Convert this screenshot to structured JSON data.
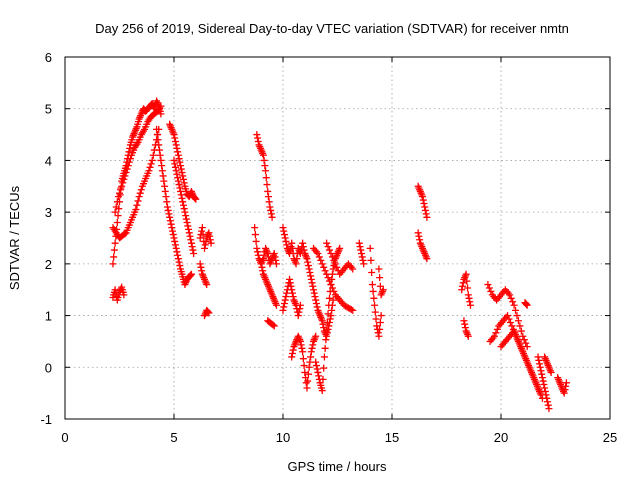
{
  "chart_data": {
    "type": "scatter",
    "title": "Day 256 of 2019, Sidereal Day-to-day VTEC variation (SDTVAR) for receiver nmtn",
    "xlabel": "GPS time / hours",
    "ylabel": "SDTVAR / TECUs",
    "xlim": [
      0,
      25
    ],
    "ylim": [
      -1,
      6
    ],
    "x_ticks": [
      "0",
      "5",
      "10",
      "15",
      "20",
      "25"
    ],
    "y_ticks": [
      "-1",
      "0",
      "1",
      "2",
      "3",
      "4",
      "5",
      "6"
    ],
    "grid": true,
    "marker": "plus",
    "color": "#ff0000",
    "series": [
      {
        "name": "SDTVAR",
        "segments": [
          {
            "x": [
              2.2,
              2.3,
              2.4,
              2.5,
              2.6,
              2.7,
              2.8,
              2.9,
              3.0,
              3.1,
              3.2,
              3.3,
              3.4,
              3.5,
              3.6,
              3.7,
              3.8,
              3.9,
              4.0,
              4.1,
              4.2,
              4.3,
              4.4
            ],
            "y": [
              2.0,
              2.4,
              2.8,
              3.2,
              3.6,
              3.75,
              3.9,
              4.1,
              4.3,
              4.45,
              4.55,
              4.65,
              4.8,
              4.9,
              5.0,
              4.95,
              5.0,
              5.05,
              5.1,
              5.0,
              5.15,
              5.05,
              4.9
            ]
          },
          {
            "x": [
              2.2,
              2.35,
              2.5,
              2.65,
              2.8,
              2.95,
              3.1,
              3.25,
              3.4,
              3.55,
              3.7,
              3.85,
              4.0,
              4.15,
              4.3
            ],
            "y": [
              2.7,
              2.6,
              2.5,
              2.55,
              2.6,
              2.75,
              2.9,
              3.05,
              3.3,
              3.5,
              3.65,
              3.8,
              4.0,
              4.3,
              4.6
            ]
          },
          {
            "x": [
              2.2,
              2.3,
              2.4,
              2.5,
              2.6,
              2.7
            ],
            "y": [
              1.35,
              1.5,
              1.3,
              1.45,
              1.55,
              1.4
            ]
          },
          {
            "x": [
              2.3,
              2.45,
              2.6,
              2.75,
              2.9,
              3.05,
              3.2,
              3.35,
              3.5,
              3.65,
              3.8,
              3.95,
              4.1,
              4.25,
              4.4
            ],
            "y": [
              3.0,
              3.3,
              3.5,
              3.7,
              3.9,
              4.1,
              4.25,
              4.35,
              4.5,
              4.6,
              4.75,
              4.85,
              4.9,
              4.95,
              5.05
            ]
          },
          {
            "x": [
              4.2,
              4.3,
              4.4,
              4.5,
              4.6,
              4.7,
              4.8,
              4.9,
              5.0,
              5.1,
              5.2,
              5.3,
              5.4,
              5.5,
              5.6,
              5.7,
              5.8
            ],
            "y": [
              4.6,
              4.3,
              4.0,
              3.7,
              3.4,
              3.1,
              2.9,
              2.7,
              2.5,
              2.3,
              2.1,
              1.9,
              1.75,
              1.6,
              1.7,
              1.75,
              1.8
            ]
          },
          {
            "x": [
              4.8,
              4.9,
              5.0,
              5.1,
              5.2,
              5.3,
              5.4,
              5.5,
              5.6,
              5.7,
              5.8,
              5.9,
              6.0
            ],
            "y": [
              4.7,
              4.6,
              4.5,
              4.3,
              4.1,
              3.9,
              3.7,
              3.5,
              3.35,
              3.3,
              3.4,
              3.3,
              3.25
            ]
          },
          {
            "x": [
              5.0,
              5.1,
              5.2,
              5.3,
              5.4,
              5.5,
              5.6,
              5.7,
              5.8,
              5.9
            ],
            "y": [
              4.0,
              3.8,
              3.6,
              3.4,
              3.2,
              3.0,
              2.8,
              2.6,
              2.4,
              2.2
            ]
          },
          {
            "x": [
              6.2,
              6.3,
              6.4,
              6.5,
              6.6,
              6.7
            ],
            "y": [
              2.5,
              2.7,
              2.3,
              2.5,
              2.6,
              2.4
            ]
          },
          {
            "x": [
              6.2,
              6.3,
              6.4,
              6.5
            ],
            "y": [
              2.0,
              1.8,
              1.7,
              1.6
            ]
          },
          {
            "x": [
              6.4,
              6.5,
              6.6
            ],
            "y": [
              1.0,
              1.1,
              1.05
            ]
          },
          {
            "x": [
              8.8,
              8.9,
              9.0,
              9.1,
              9.2,
              9.3,
              9.4,
              9.5
            ],
            "y": [
              4.5,
              4.3,
              4.2,
              4.1,
              3.8,
              3.4,
              3.1,
              2.9
            ]
          },
          {
            "x": [
              8.7,
              8.8,
              8.9,
              9.0,
              9.1,
              9.2,
              9.3,
              9.4,
              9.5,
              9.6,
              9.7
            ],
            "y": [
              2.7,
              2.3,
              2.1,
              2.0,
              2.1,
              2.3,
              2.2,
              2.0,
              2.1,
              2.2,
              2.0
            ]
          },
          {
            "x": [
              9.0,
              9.1,
              9.2,
              9.3,
              9.4,
              9.5,
              9.6,
              9.7
            ],
            "y": [
              2.0,
              1.8,
              1.7,
              1.6,
              1.5,
              1.4,
              1.3,
              1.2
            ]
          },
          {
            "x": [
              9.3,
              9.45,
              9.6
            ],
            "y": [
              0.9,
              0.85,
              0.8
            ]
          },
          {
            "x": [
              10.0,
              10.1,
              10.2,
              10.3,
              10.4,
              10.5,
              10.6,
              10.7,
              10.8,
              10.9,
              11.0
            ],
            "y": [
              2.7,
              2.5,
              2.3,
              2.2,
              2.4,
              2.1,
              2.0,
              2.3,
              2.2,
              2.4,
              2.2
            ]
          },
          {
            "x": [
              10.0,
              10.1,
              10.2,
              10.3,
              10.4,
              10.5,
              10.6,
              10.7,
              10.8
            ],
            "y": [
              1.1,
              1.3,
              1.5,
              1.7,
              1.5,
              1.3,
              1.2,
              1.0,
              1.2
            ]
          },
          {
            "x": [
              10.4,
              10.5,
              10.6,
              10.7,
              10.8,
              10.9,
              11.0,
              11.1,
              11.2,
              11.3,
              11.4,
              11.5
            ],
            "y": [
              0.2,
              0.4,
              0.5,
              0.6,
              0.5,
              0.3,
              -0.1,
              -0.4,
              0.0,
              0.3,
              0.5,
              0.6
            ]
          },
          {
            "x": [
              11.0,
              11.1,
              11.2,
              11.3,
              11.4,
              11.5,
              11.6,
              11.7,
              11.8,
              11.9,
              12.0,
              12.1,
              12.2,
              12.3
            ],
            "y": [
              2.2,
              2.1,
              1.9,
              1.7,
              1.5,
              1.3,
              1.1,
              1.0,
              0.9,
              0.7,
              0.6,
              0.8,
              1.0,
              1.3
            ]
          },
          {
            "x": [
              11.5,
              11.6,
              11.7,
              11.8,
              11.9,
              12.0,
              12.1,
              12.2,
              12.3,
              12.4,
              12.5,
              12.6
            ],
            "y": [
              0.1,
              -0.1,
              -0.3,
              -0.45,
              0.2,
              0.7,
              1.2,
              1.6,
              1.9,
              2.1,
              2.2,
              2.3
            ]
          },
          {
            "x": [
              11.4,
              11.6,
              11.8,
              12.0,
              12.2,
              12.4,
              12.6,
              12.8,
              13.0,
              13.2
            ],
            "y": [
              2.3,
              2.2,
              2.0,
              1.8,
              1.6,
              1.4,
              1.3,
              1.2,
              1.15,
              1.1
            ]
          },
          {
            "x": [
              12.0,
              12.2,
              12.4,
              12.6,
              12.8,
              13.0,
              13.2
            ],
            "y": [
              2.4,
              2.2,
              2.0,
              1.8,
              1.9,
              2.0,
              1.9
            ]
          },
          {
            "x": [
              13.5,
              13.6,
              13.7
            ],
            "y": [
              2.4,
              2.2,
              2.0
            ]
          },
          {
            "x": [
              14.0,
              14.1,
              14.2,
              14.3,
              14.4,
              14.5
            ],
            "y": [
              2.3,
              1.6,
              1.2,
              0.8,
              0.6,
              1.0
            ]
          },
          {
            "x": [
              14.4,
              14.5,
              14.6
            ],
            "y": [
              1.9,
              1.4,
              1.5
            ]
          },
          {
            "x": [
              16.2,
              16.3,
              16.4,
              16.5,
              16.6
            ],
            "y": [
              3.5,
              3.4,
              3.3,
              3.1,
              2.9
            ]
          },
          {
            "x": [
              16.2,
              16.3,
              16.4,
              16.5,
              16.6
            ],
            "y": [
              2.6,
              2.4,
              2.3,
              2.2,
              2.1
            ]
          },
          {
            "x": [
              18.2,
              18.3,
              18.4,
              18.5,
              18.6
            ],
            "y": [
              1.5,
              1.7,
              1.8,
              1.4,
              1.2
            ]
          },
          {
            "x": [
              18.3,
              18.4,
              18.5
            ],
            "y": [
              0.9,
              0.7,
              0.6
            ]
          },
          {
            "x": [
              19.4,
              19.6,
              19.8,
              20.0,
              20.2,
              20.4,
              20.6,
              20.8,
              21.0,
              21.2
            ],
            "y": [
              1.6,
              1.4,
              1.3,
              1.4,
              1.5,
              1.4,
              1.2,
              0.9,
              0.6,
              0.4
            ]
          },
          {
            "x": [
              19.5,
              19.7,
              19.9,
              20.1,
              20.3,
              20.5,
              20.7,
              20.9,
              21.1,
              21.3,
              21.5,
              21.7,
              21.9
            ],
            "y": [
              0.5,
              0.6,
              0.8,
              0.9,
              1.0,
              0.8,
              0.6,
              0.4,
              0.2,
              0.0,
              -0.2,
              -0.4,
              -0.6
            ]
          },
          {
            "x": [
              20.0,
              20.2,
              20.4,
              20.6,
              20.8,
              21.0,
              21.2,
              21.4,
              21.6,
              21.8
            ],
            "y": [
              0.4,
              0.5,
              0.6,
              0.7,
              0.5,
              0.3,
              0.1,
              -0.1,
              -0.3,
              -0.5
            ]
          },
          {
            "x": [
              21.1,
              21.2
            ],
            "y": [
              1.25,
              1.2
            ]
          },
          {
            "x": [
              21.7,
              21.8,
              21.9,
              22.0,
              22.1,
              22.2
            ],
            "y": [
              0.2,
              0.0,
              -0.2,
              -0.4,
              -0.6,
              -0.8
            ]
          },
          {
            "x": [
              22.0,
              22.1,
              22.2,
              22.3
            ],
            "y": [
              0.2,
              0.1,
              0.0,
              -0.1
            ]
          },
          {
            "x": [
              22.6,
              22.7,
              22.8,
              22.9,
              23.0
            ],
            "y": [
              -0.2,
              -0.3,
              -0.4,
              -0.5,
              -0.3
            ]
          }
        ]
      }
    ]
  }
}
